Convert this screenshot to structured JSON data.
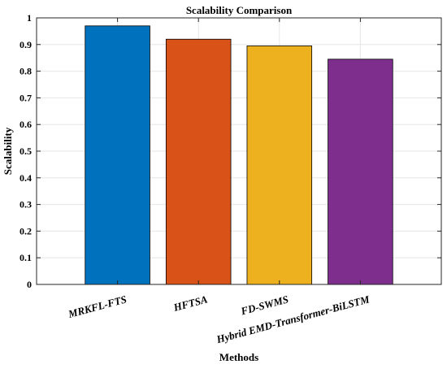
{
  "chart_data": {
    "type": "bar",
    "title": "Scalability Comparison",
    "xlabel": "Methods",
    "ylabel": "Scalability",
    "categories": [
      "MRKFL-FTS",
      "HFTSA",
      "FD-SWMS",
      "Hybrid EMD-Transformer-BiLSTM"
    ],
    "values": [
      0.97,
      0.92,
      0.895,
      0.845
    ],
    "colors": [
      "#0072BD",
      "#D95319",
      "#EDB120",
      "#7E2F8E"
    ],
    "ylim": [
      0,
      1
    ],
    "yticks": [
      "0",
      "0.1",
      "0.2",
      "0.3",
      "0.4",
      "0.5",
      "0.6",
      "0.7",
      "0.8",
      "0.9",
      "1"
    ],
    "grid": true
  }
}
